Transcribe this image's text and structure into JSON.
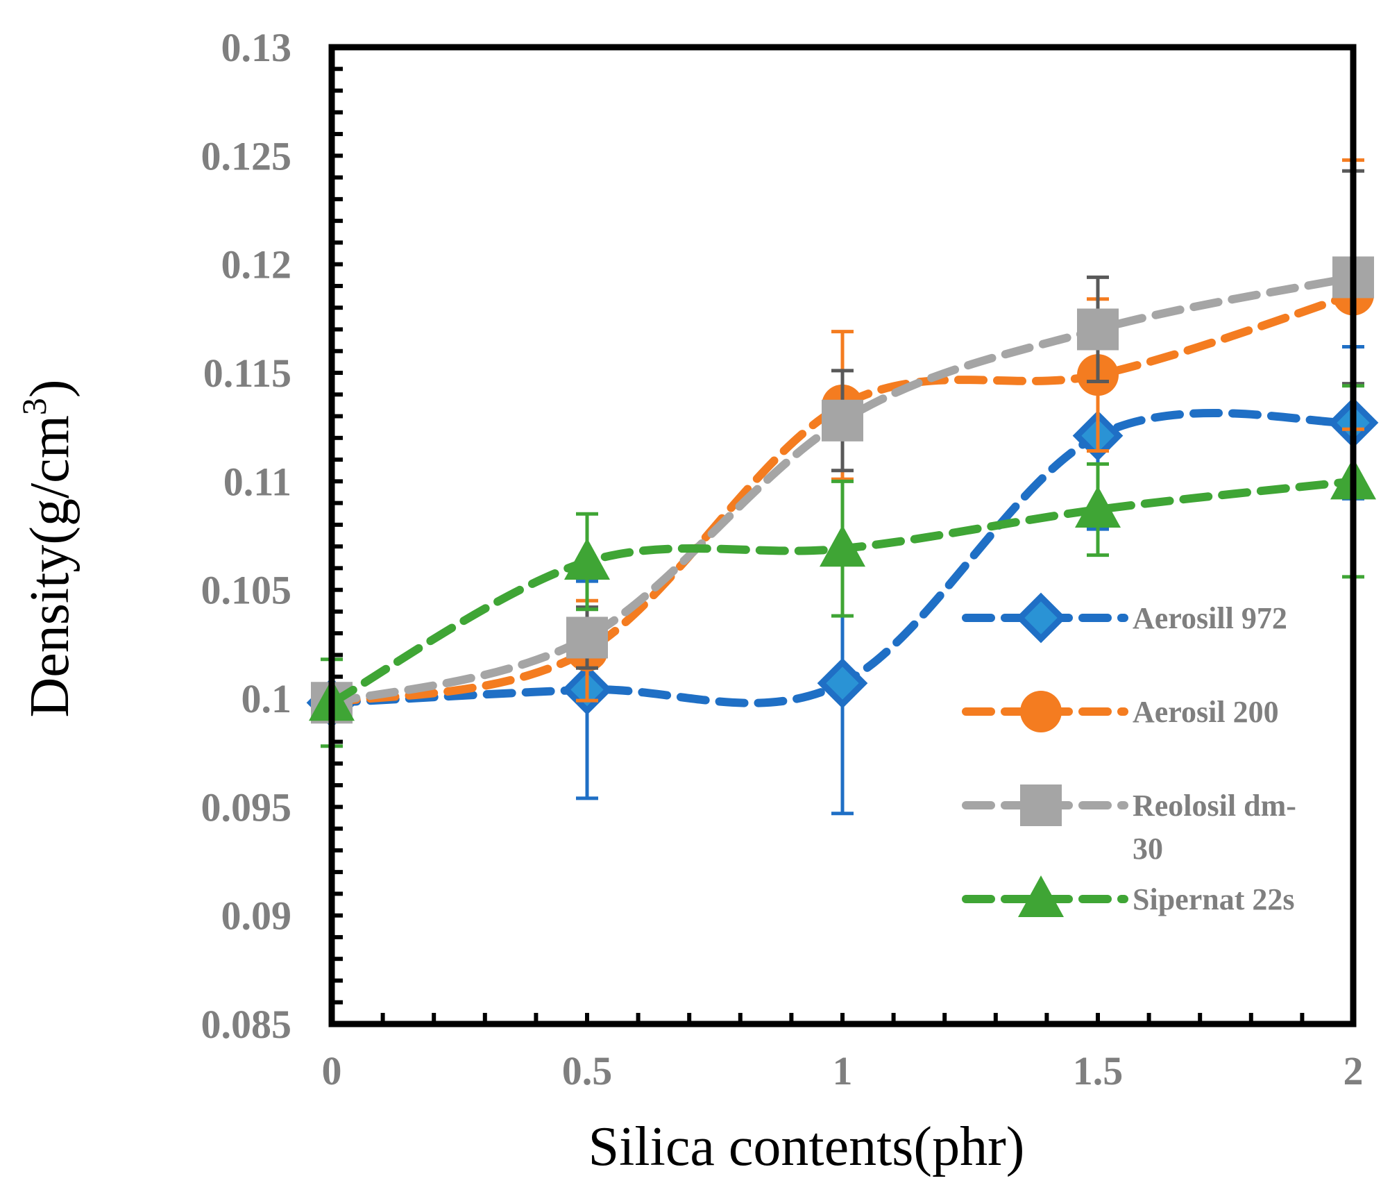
{
  "chart_data": {
    "type": "line",
    "title": "",
    "xlabel": "Silica contents(phr)",
    "ylabel": "Density(g/cm",
    "ylabel_superscript": "3",
    "ylabel_close": ")",
    "xlim": [
      0,
      2
    ],
    "ylim": [
      0.085,
      0.13
    ],
    "x": [
      0,
      0.5,
      1,
      1.5,
      2
    ],
    "x_tick_labels": [
      "0",
      "0.5",
      "1",
      "1.5",
      "2"
    ],
    "y_ticks": [
      0.085,
      0.09,
      0.095,
      0.1,
      0.105,
      0.11,
      0.115,
      0.12,
      0.125,
      0.13
    ],
    "y_tick_labels": [
      "0.085",
      "0.09",
      "0.095",
      "0.1",
      "0.105",
      "0.11",
      "0.115",
      "0.12",
      "0.125",
      "0.13"
    ],
    "grid": false,
    "legend_position": "right",
    "series": [
      {
        "name": "Aerosill 972",
        "marker": "diamond",
        "color": "#1f6fc5",
        "values": [
          0.0998,
          0.1004,
          0.1007,
          0.1121,
          0.1127
        ],
        "error": [
          0.0002,
          0.005,
          0.006,
          0.0043,
          0.0035
        ]
      },
      {
        "name": "Aerosil 200",
        "marker": "circle",
        "color": "#f47c20",
        "values": [
          0.0998,
          0.1022,
          0.1135,
          0.1149,
          0.1186
        ],
        "error": [
          0.0002,
          0.0023,
          0.0034,
          0.0035,
          0.0062
        ]
      },
      {
        "name": "Reolosil dm-30",
        "marker": "square",
        "color": "#a5a5a5",
        "values": [
          0.0998,
          0.1028,
          0.1128,
          0.117,
          0.1194
        ],
        "error": [
          0.0002,
          0.0014,
          0.0023,
          0.0024,
          0.0049
        ]
      },
      {
        "name": "Sipernat 22s",
        "marker": "triangle",
        "color": "#3fa535",
        "values": [
          0.0998,
          0.1063,
          0.1069,
          0.1087,
          0.11
        ],
        "error": [
          0.002,
          0.0022,
          0.0031,
          0.0021,
          0.0044
        ]
      }
    ],
    "legend_lines": [
      [
        "Aerosill 972"
      ],
      [
        "Aerosil 200"
      ],
      [
        "Reolosil dm-",
        "30"
      ],
      [
        "Sipernat 22s"
      ]
    ]
  }
}
